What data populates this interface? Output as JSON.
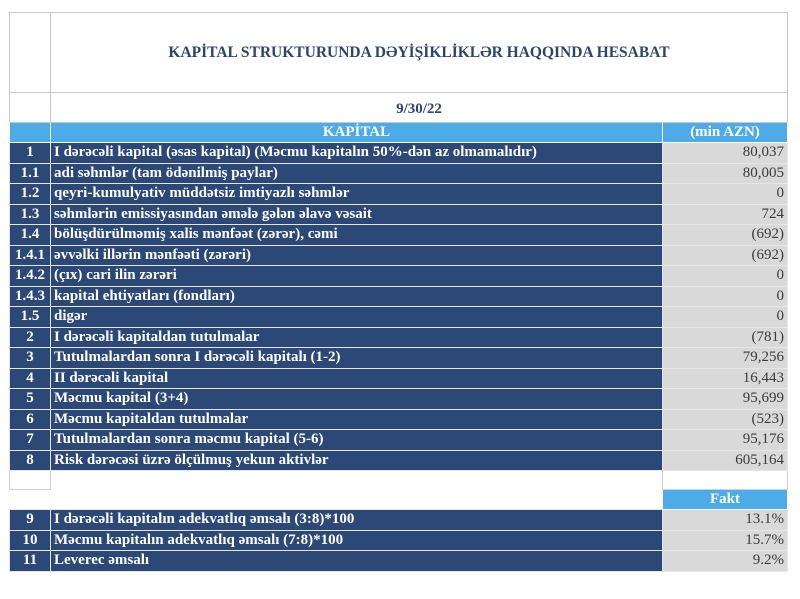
{
  "report": {
    "title": "KAPİTAL STRUKTURUNDA DƏYİŞİKLİKLƏR HAQQINDA HESABAT",
    "date": "9/30/22",
    "header": {
      "section": "KAPİTAL",
      "unit": "(min AZN)"
    },
    "rows": [
      {
        "no": "1",
        "label": "I dərəcəli kapital (əsas kapital) (Məcmu kapitalın 50%-dən az olmamalıdır)",
        "value": "80,037"
      },
      {
        "no": "1.1",
        "label": "adi səhmlər (tam ödənilmiş paylar)",
        "value": "80,005"
      },
      {
        "no": "1.2",
        "label": "qeyri-kumulyativ müddətsiz imtiyazlı səhmlər",
        "value": "0"
      },
      {
        "no": "1.3",
        "label": "səhmlərin emissiyasından əmələ gələn  əlavə vəsait",
        "value": "724"
      },
      {
        "no": "1.4",
        "label": "bölüşdürülməmiş xalis mənfəət (zərər), cəmi",
        "value": "(692)"
      },
      {
        "no": "1.4.1",
        "label": "əvvəlki illərin mənfəəti (zərəri)",
        "value": "(692)"
      },
      {
        "no": "1.4.2",
        "label": "(çıx) cari ilin zərəri",
        "value": "0"
      },
      {
        "no": "1.4.3",
        "label": "kapital ehtiyatları (fondları)",
        "value": "0"
      },
      {
        "no": "1.5",
        "label": "digər",
        "value": "0"
      },
      {
        "no": "2",
        "label": "I dərəcəli kapitaldan  tutulmalar",
        "value": "(781)"
      },
      {
        "no": "3",
        "label": "Tutulmalardan  sonra I dərəcəli kapitalı (1-2)",
        "value": "79,256"
      },
      {
        "no": "4",
        "label": "II dərəcəli  kapital",
        "value": "16,443"
      },
      {
        "no": "5",
        "label": "Məcmu kapital (3+4)",
        "value": "95,699"
      },
      {
        "no": "6",
        "label": "Məcmu kapitaldan tutulmalar",
        "value": "(523)"
      },
      {
        "no": "7",
        "label": "Tutulmalardan  sonra məcmu kapital (5-6)",
        "value": "95,176"
      },
      {
        "no": "8",
        "label": "Risk dərəcəsi üzrə ölçülmuş  yekun aktivlər",
        "value": "605,164"
      }
    ],
    "ratios_header": "Fakt",
    "ratios": [
      {
        "no": "9",
        "label": "I dərəcəli  kapitalın  adekvatlıq əmsalı (3:8)*100",
        "value": "13.1%"
      },
      {
        "no": "10",
        "label": "Məcmu kapitalın  adekvatlıq  əmsalı (7:8)*100",
        "value": "15.7%"
      },
      {
        "no": "11",
        "label": "Leverec əmsalı",
        "value": "9.2%"
      }
    ]
  },
  "colors": {
    "navy": "#2c4876",
    "accent_blue": "#4dabe8",
    "value_bg": "#d9d9d9"
  }
}
